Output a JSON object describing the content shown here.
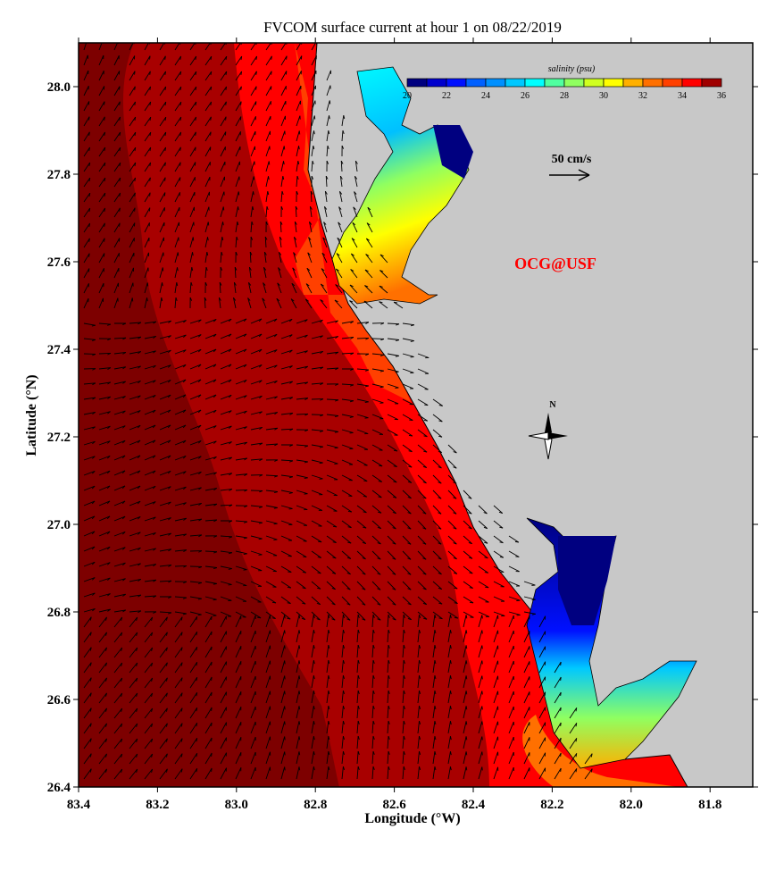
{
  "title": "FVCOM surface current at hour 1 on 08/22/2019",
  "xlabel": "Longitude (°W)",
  "ylabel": "Latitude (°N)",
  "x_ticks": [
    "83.4",
    "83.2",
    "83.0",
    "82.8",
    "82.6",
    "82.4",
    "82.2",
    "82.0",
    "81.8"
  ],
  "y_ticks": [
    "28.0",
    "27.8",
    "27.6",
    "27.4",
    "27.2",
    "27.0",
    "26.8",
    "26.6",
    "26.4"
  ],
  "colorbar": {
    "label": "salinity (psu)",
    "ticks": [
      "20",
      "22",
      "24",
      "26",
      "28",
      "30",
      "32",
      "34",
      "36"
    ],
    "colors": [
      "#000080",
      "#0000cd",
      "#0010ff",
      "#0060ff",
      "#0090ff",
      "#00c8ff",
      "#00ffff",
      "#50ffa0",
      "#90ff60",
      "#d0ff20",
      "#ffff00",
      "#ffb000",
      "#ff7000",
      "#ff4000",
      "#ff0000",
      "#a00000"
    ]
  },
  "scale_arrow_label": "50 cm/s",
  "credit": "OCG@USF",
  "north_label": "N",
  "colors": {
    "land": "#c8c8c8",
    "deep": "#7d0000",
    "mid": "#a80000",
    "coastal": "#ff0000",
    "credit": "#ff0000"
  }
}
